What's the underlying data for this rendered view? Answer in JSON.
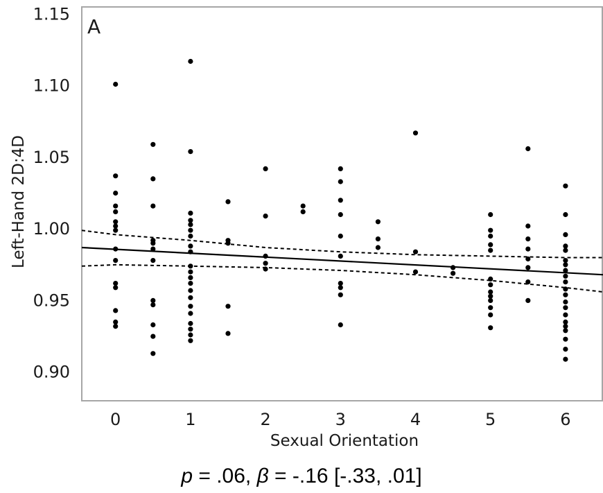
{
  "chart_data": {
    "type": "scatter",
    "panel_label": "A",
    "xlabel": "Sexual Orientation",
    "ylabel": "Left-Hand 2D:4D",
    "xlim": [
      -0.45,
      6.5
    ],
    "ylim": [
      0.88,
      1.155
    ],
    "xticks": [
      0,
      1,
      2,
      3,
      4,
      5,
      6
    ],
    "xtick_labels": [
      "0",
      "1",
      "2",
      "3",
      "4",
      "5",
      "6"
    ],
    "yticks": [
      0.9,
      0.95,
      1.0,
      1.05,
      1.1,
      1.15
    ],
    "ytick_labels": [
      "0.90",
      "0.95",
      "1.00",
      "1.05",
      "1.10",
      "1.15"
    ],
    "grid": false,
    "points": [
      [
        0,
        1.101
      ],
      [
        0,
        1.037
      ],
      [
        0,
        1.025
      ],
      [
        0,
        1.016
      ],
      [
        0,
        1.012
      ],
      [
        0,
        1.005
      ],
      [
        0,
        1.002
      ],
      [
        0,
        0.999
      ],
      [
        0,
        0.986
      ],
      [
        0,
        0.978
      ],
      [
        0,
        0.962
      ],
      [
        0,
        0.959
      ],
      [
        0,
        0.943
      ],
      [
        0,
        0.935
      ],
      [
        0,
        0.932
      ],
      [
        0.5,
        1.059
      ],
      [
        0.5,
        1.035
      ],
      [
        0.5,
        1.016
      ],
      [
        0.5,
        0.992
      ],
      [
        0.5,
        0.99
      ],
      [
        0.5,
        0.986
      ],
      [
        0.5,
        0.978
      ],
      [
        0.5,
        0.95
      ],
      [
        0.5,
        0.947
      ],
      [
        0.5,
        0.933
      ],
      [
        0.5,
        0.925
      ],
      [
        0.5,
        0.913
      ],
      [
        1,
        1.117
      ],
      [
        1,
        1.054
      ],
      [
        1,
        1.011
      ],
      [
        1,
        1.006
      ],
      [
        1,
        1.003
      ],
      [
        1,
        0.999
      ],
      [
        1,
        0.995
      ],
      [
        1,
        0.988
      ],
      [
        1,
        0.984
      ],
      [
        1,
        0.974
      ],
      [
        1,
        0.97
      ],
      [
        1,
        0.966
      ],
      [
        1,
        0.962
      ],
      [
        1,
        0.957
      ],
      [
        1,
        0.952
      ],
      [
        1,
        0.946
      ],
      [
        1,
        0.941
      ],
      [
        1,
        0.934
      ],
      [
        1,
        0.93
      ],
      [
        1,
        0.926
      ],
      [
        1,
        0.922
      ],
      [
        1.5,
        1.019
      ],
      [
        1.5,
        0.992
      ],
      [
        1.5,
        0.99
      ],
      [
        1.5,
        0.946
      ],
      [
        1.5,
        0.927
      ],
      [
        2,
        1.042
      ],
      [
        2,
        1.009
      ],
      [
        2,
        0.981
      ],
      [
        2,
        0.976
      ],
      [
        2,
        0.972
      ],
      [
        2.5,
        1.016
      ],
      [
        2.5,
        1.012
      ],
      [
        3,
        1.042
      ],
      [
        3,
        1.033
      ],
      [
        3,
        1.02
      ],
      [
        3,
        1.01
      ],
      [
        3,
        0.995
      ],
      [
        3,
        0.981
      ],
      [
        3,
        0.962
      ],
      [
        3,
        0.959
      ],
      [
        3,
        0.954
      ],
      [
        3,
        0.933
      ],
      [
        3.5,
        1.005
      ],
      [
        3.5,
        0.993
      ],
      [
        3.5,
        0.987
      ],
      [
        4,
        1.067
      ],
      [
        4,
        0.984
      ],
      [
        4,
        0.97
      ],
      [
        4.5,
        0.973
      ],
      [
        4.5,
        0.969
      ],
      [
        5,
        1.01
      ],
      [
        5,
        0.999
      ],
      [
        5,
        0.995
      ],
      [
        5,
        0.989
      ],
      [
        5,
        0.985
      ],
      [
        5,
        0.965
      ],
      [
        5,
        0.961
      ],
      [
        5,
        0.956
      ],
      [
        5,
        0.953
      ],
      [
        5,
        0.95
      ],
      [
        5,
        0.945
      ],
      [
        5,
        0.94
      ],
      [
        5,
        0.931
      ],
      [
        5.5,
        1.056
      ],
      [
        5.5,
        1.002
      ],
      [
        5.5,
        0.993
      ],
      [
        5.5,
        0.986
      ],
      [
        5.5,
        0.979
      ],
      [
        5.5,
        0.973
      ],
      [
        5.5,
        0.963
      ],
      [
        5.5,
        0.95
      ],
      [
        6,
        1.03
      ],
      [
        6,
        1.01
      ],
      [
        6,
        0.996
      ],
      [
        6,
        0.988
      ],
      [
        6,
        0.985
      ],
      [
        6,
        0.978
      ],
      [
        6,
        0.975
      ],
      [
        6,
        0.971
      ],
      [
        6,
        0.967
      ],
      [
        6,
        0.963
      ],
      [
        6,
        0.958
      ],
      [
        6,
        0.954
      ],
      [
        6,
        0.949
      ],
      [
        6,
        0.945
      ],
      [
        6,
        0.94
      ],
      [
        6,
        0.935
      ],
      [
        6,
        0.932
      ],
      [
        6,
        0.929
      ],
      [
        6,
        0.923
      ],
      [
        6,
        0.916
      ],
      [
        6,
        0.909
      ]
    ],
    "fit_line": {
      "x": [
        -0.45,
        6.5
      ],
      "y": [
        0.987,
        0.968
      ]
    },
    "ci_upper": {
      "x": [
        -0.45,
        0,
        1,
        2,
        3,
        4,
        5,
        6,
        6.5
      ],
      "y": [
        0.999,
        0.996,
        0.992,
        0.987,
        0.984,
        0.982,
        0.981,
        0.98,
        0.98
      ]
    },
    "ci_lower": {
      "x": [
        -0.45,
        0,
        1,
        2,
        3,
        4,
        5,
        6,
        6.5
      ],
      "y": [
        0.974,
        0.975,
        0.974,
        0.973,
        0.971,
        0.968,
        0.964,
        0.959,
        0.956
      ]
    },
    "stats": {
      "p_symbol": "p",
      "p_text": " = .06, ",
      "beta_symbol": "β",
      "beta_text": " = -.16 [-.33, .01]"
    }
  }
}
